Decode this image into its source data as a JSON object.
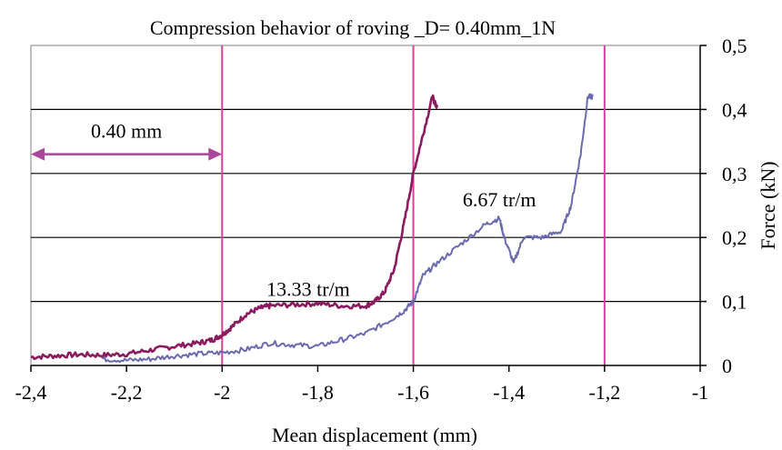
{
  "chart_data": {
    "type": "line",
    "title": "Compression behavior of roving _D= 0.40mm_1N",
    "xlabel": "Mean displacement  (mm)",
    "ylabel": "Force (kN)",
    "xlim": [
      -2.4,
      -1.0
    ],
    "ylim": [
      0,
      0.5
    ],
    "x_ticks": [
      -2.4,
      -2.2,
      -2.0,
      -1.8,
      -1.6,
      -1.4,
      -1.2,
      -1.0
    ],
    "x_tick_labels": [
      "-2,4",
      "-2,2",
      "-2",
      "-1,8",
      "-1,6",
      "-1,4",
      "-1,2",
      "-1"
    ],
    "y_ticks": [
      0,
      0.1,
      0.2,
      0.3,
      0.4,
      0.5
    ],
    "y_tick_labels": [
      "0",
      "0,1",
      "0,2",
      "0,3",
      "0,4",
      "0,5"
    ],
    "y_axis_side": "right",
    "grid": {
      "horizontal": true,
      "vertical": false
    },
    "vertical_markers": [
      -2.0,
      -1.6,
      -1.2
    ],
    "colors": {
      "series_13_33": "#8b1a5e",
      "series_6_67": "#6a6ab0",
      "markers": "#d6409f",
      "arrow": "#a9479a",
      "plot_border": "#808080"
    },
    "series": [
      {
        "name": "13.33 tr/m",
        "x": [
          -2.4,
          -2.35,
          -2.3,
          -2.25,
          -2.2,
          -2.15,
          -2.1,
          -2.05,
          -2.02,
          -2.0,
          -1.98,
          -1.95,
          -1.92,
          -1.9,
          -1.85,
          -1.8,
          -1.75,
          -1.7,
          -1.68,
          -1.66,
          -1.64,
          -1.62,
          -1.6,
          -1.58,
          -1.56,
          -1.555,
          -1.55
        ],
        "y": [
          0.013,
          0.015,
          0.017,
          0.016,
          0.018,
          0.024,
          0.03,
          0.035,
          0.04,
          0.048,
          0.06,
          0.08,
          0.09,
          0.093,
          0.095,
          0.097,
          0.093,
          0.093,
          0.1,
          0.115,
          0.15,
          0.22,
          0.3,
          0.36,
          0.42,
          0.41,
          0.405
        ]
      },
      {
        "name": "6.67 tr/m",
        "x": [
          -2.25,
          -2.2,
          -2.15,
          -2.1,
          -2.05,
          -2.0,
          -1.95,
          -1.9,
          -1.85,
          -1.8,
          -1.75,
          -1.7,
          -1.65,
          -1.62,
          -1.6,
          -1.58,
          -1.55,
          -1.5,
          -1.45,
          -1.42,
          -1.41,
          -1.39,
          -1.37,
          -1.33,
          -1.29,
          -1.27,
          -1.25,
          -1.235,
          -1.225
        ],
        "y": [
          0.01,
          0.008,
          0.01,
          0.015,
          0.018,
          0.02,
          0.025,
          0.035,
          0.032,
          0.03,
          0.04,
          0.05,
          0.07,
          0.085,
          0.1,
          0.14,
          0.16,
          0.19,
          0.22,
          0.23,
          0.2,
          0.16,
          0.2,
          0.2,
          0.21,
          0.25,
          0.33,
          0.42,
          0.42
        ]
      }
    ],
    "annotations": [
      {
        "text": "13.33 tr/m",
        "x": -1.82,
        "y": 0.12
      },
      {
        "text": "6.67 tr/m",
        "x": -1.42,
        "y": 0.26
      },
      {
        "text": "0.40 mm",
        "x": -2.2,
        "y": 0.4
      }
    ],
    "arrow_span": {
      "from": -2.4,
      "to": -2.0,
      "y": 0.33,
      "label": "0.40 mm"
    }
  }
}
